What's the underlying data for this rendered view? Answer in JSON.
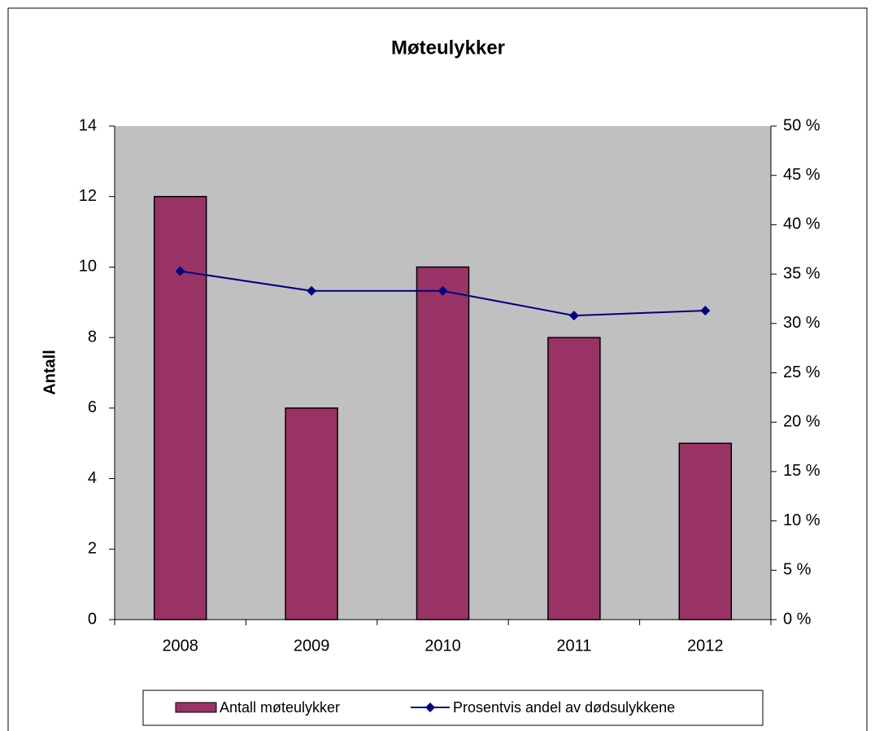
{
  "chart_data": {
    "type": "bar",
    "title": "Møteulykker",
    "y_label": "Antall",
    "categories": [
      "2008",
      "2009",
      "2010",
      "2011",
      "2012"
    ],
    "series": [
      {
        "name": "Antall møteulykker",
        "type": "bar",
        "color": "#993366",
        "values": [
          12,
          6,
          10,
          8,
          5
        ]
      },
      {
        "name": "Prosentvis andel av dødsulykkene",
        "type": "line",
        "axis": "y2",
        "color": "#000080",
        "values": [
          35.3,
          33.3,
          33.3,
          30.8,
          31.3
        ]
      }
    ],
    "ylim": [
      0,
      14
    ],
    "yticks": [
      0,
      2,
      4,
      6,
      8,
      10,
      12,
      14
    ],
    "y2lim": [
      0,
      50
    ],
    "y2ticks": [
      {
        "value": 0,
        "label": "0 %"
      },
      {
        "value": 5,
        "label": "5 %"
      },
      {
        "value": 10,
        "label": "10 %"
      },
      {
        "value": 15,
        "label": "15 %"
      },
      {
        "value": 20,
        "label": "20 %"
      },
      {
        "value": 25,
        "label": "25 %"
      },
      {
        "value": 30,
        "label": "30 %"
      },
      {
        "value": 35,
        "label": "35 %"
      },
      {
        "value": 40,
        "label": "40 %"
      },
      {
        "value": 45,
        "label": "45 %"
      },
      {
        "value": 50,
        "label": "50 %"
      }
    ],
    "plot_background": "#c0c0c0",
    "legend": "bottom"
  }
}
